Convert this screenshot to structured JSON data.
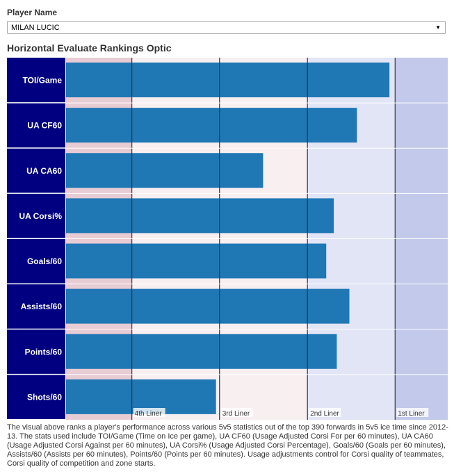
{
  "filter": {
    "label": "Player Name",
    "selected": "MILAN LUCIC"
  },
  "chart_data": {
    "type": "bar",
    "orientation": "horizontal",
    "title": "Horizontal Evaluate Rankings Optic",
    "categories": [
      "TOI/Game",
      "UA CF60",
      "UA CA60",
      "UA Corsi%",
      "Goals/60",
      "Assists/60",
      "Points/60",
      "Shots/60"
    ],
    "values": [
      0.9785,
      0.855,
      0.4985,
      0.7671,
      0.7384,
      0.8263,
      0.7785,
      0.3197
    ],
    "xlim": [
      -0.25,
      1.2
    ],
    "thresholds": [
      {
        "value": 0,
        "label": "4th Liner"
      },
      {
        "value": 0.333,
        "label": "3rd Liner"
      },
      {
        "value": 0.667,
        "label": "2nd Liner"
      },
      {
        "value": 1.0,
        "label": "1st Liner"
      }
    ],
    "colors": {
      "bar": "#1f77b4",
      "category_band": "#000080",
      "zone_4th": "#e8ccd4",
      "zone_3rd": "#f8eff1",
      "zone_2nd": "#e1e5f5",
      "zone_1st": "#c2c9ea",
      "threshold_line": "#333344"
    }
  },
  "caption": "The visual above ranks a player's performance across various 5v5 statistics out of the top 390 forwards in 5v5 ice time since 2012-13. The stats used include TOI/Game (Time on Ice per game), UA CF60 (Usage Adjusted Corsi For per 60 minutes), UA CA60 (Usage Adjusted Corsi Against per 60 minutes), UA Corsi% (Usage Adjusted Corsi Percentage), Goals/60 (Goals per 60 minutes), Assists/60 (Assists per 60 minutes), Points/60 (Points per 60 minutes). Usage adjustments control for Corsi quality of teammates, Corsi quality of competition and zone starts."
}
